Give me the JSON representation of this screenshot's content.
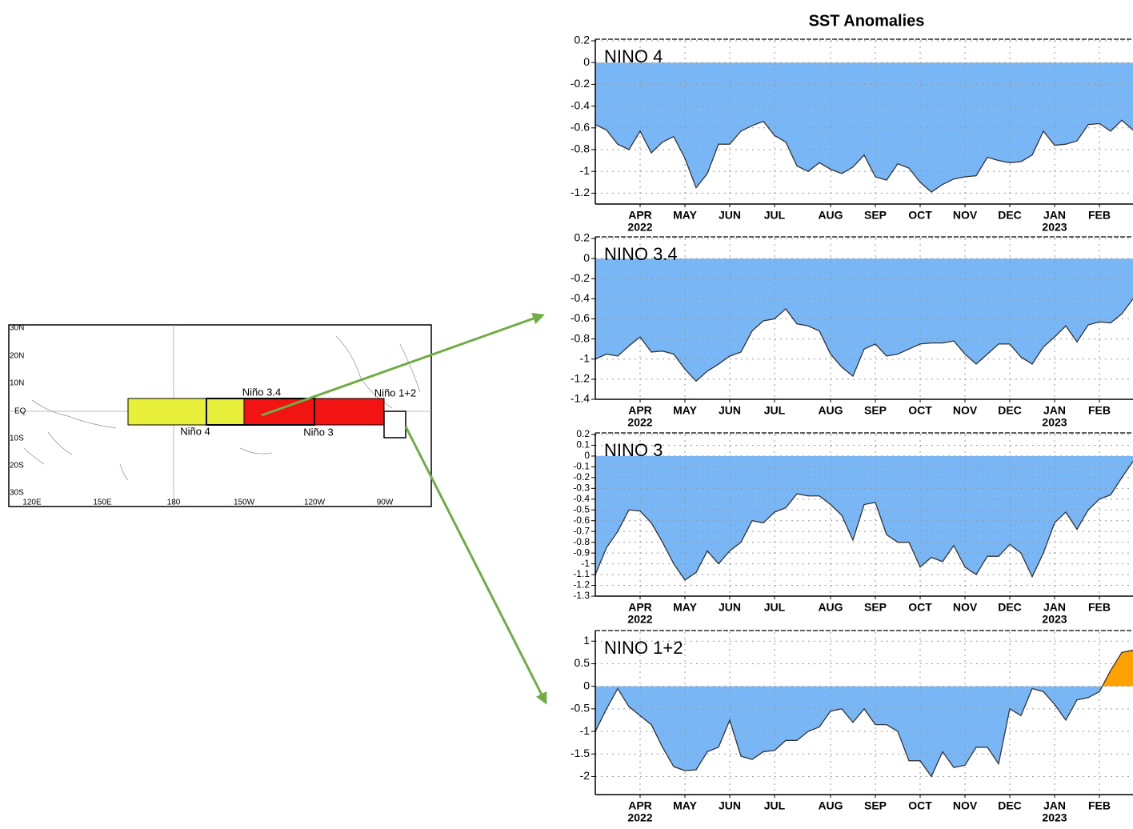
{
  "title": "SST Anomalies",
  "map": {
    "lat_labels": [
      "30N",
      "20N",
      "10N",
      "EQ",
      "10S",
      "20S",
      "30S"
    ],
    "lon_labels": [
      "120E",
      "150E",
      "180",
      "150W",
      "120W",
      "90W"
    ],
    "regions": [
      "Niño 3.4",
      "Niño 1+2",
      "Niño 4",
      "Niño 3"
    ]
  },
  "chart_data": [
    {
      "type": "area",
      "title": "NINO 4",
      "categories": [
        null,
        null,
        null,
        null,
        "APR",
        null,
        null,
        null,
        "MAY",
        null,
        null,
        null,
        "JUN",
        null,
        null,
        null,
        "JUL",
        null,
        null,
        null,
        null,
        "AUG",
        null,
        null,
        null,
        "SEP",
        null,
        null,
        null,
        "OCT",
        null,
        null,
        null,
        "NOV",
        null,
        null,
        null,
        "DEC",
        null,
        null,
        null,
        "JAN",
        null,
        null,
        null,
        "FEB",
        null,
        null,
        null
      ],
      "category_years": [
        null,
        null,
        null,
        null,
        "2022",
        null,
        null,
        null,
        null,
        null,
        null,
        null,
        null,
        null,
        null,
        null,
        null,
        null,
        null,
        null,
        null,
        null,
        null,
        null,
        null,
        null,
        null,
        null,
        null,
        null,
        null,
        null,
        null,
        null,
        null,
        null,
        null,
        null,
        null,
        null,
        null,
        "2023",
        null,
        null,
        null,
        null,
        null,
        null,
        null
      ],
      "values": [
        -0.57,
        -0.62,
        -0.75,
        -0.8,
        -0.63,
        -0.83,
        -0.73,
        -0.68,
        -0.88,
        -1.15,
        -1.02,
        -0.75,
        -0.75,
        -0.63,
        -0.58,
        -0.54,
        -0.67,
        -0.73,
        -0.95,
        -1.0,
        -0.92,
        -0.98,
        -1.02,
        -0.96,
        -0.85,
        -1.05,
        -1.08,
        -0.93,
        -0.97,
        -1.1,
        -1.19,
        -1.12,
        -1.07,
        -1.05,
        -1.04,
        -0.87,
        -0.9,
        -0.92,
        -0.91,
        -0.85,
        -0.63,
        -0.76,
        -0.75,
        -0.72,
        -0.57,
        -0.56,
        -0.63,
        -0.53,
        -0.62
      ],
      "color": "#78b6f6",
      "positive_color": "#ffa200",
      "line_color": "#333333",
      "ylim": [
        -1.3,
        0.2
      ],
      "yticks": [
        0.2,
        0,
        -0.2,
        -0.4,
        -0.6,
        -0.8,
        -1,
        -1.2
      ],
      "grid": true
    },
    {
      "type": "area",
      "title": "NINO 3.4",
      "categories": [
        null,
        null,
        null,
        null,
        "APR",
        null,
        null,
        null,
        "MAY",
        null,
        null,
        null,
        "JUN",
        null,
        null,
        null,
        "JUL",
        null,
        null,
        null,
        null,
        "AUG",
        null,
        null,
        null,
        "SEP",
        null,
        null,
        null,
        "OCT",
        null,
        null,
        null,
        "NOV",
        null,
        null,
        null,
        "DEC",
        null,
        null,
        null,
        "JAN",
        null,
        null,
        null,
        "FEB",
        null,
        null,
        null
      ],
      "category_years": [
        null,
        null,
        null,
        null,
        "2022",
        null,
        null,
        null,
        null,
        null,
        null,
        null,
        null,
        null,
        null,
        null,
        null,
        null,
        null,
        null,
        null,
        null,
        null,
        null,
        null,
        null,
        null,
        null,
        null,
        null,
        null,
        null,
        null,
        null,
        null,
        null,
        null,
        null,
        null,
        null,
        null,
        "2023",
        null,
        null,
        null,
        null,
        null,
        null,
        null
      ],
      "values": [
        -1.0,
        -0.95,
        -0.97,
        -0.87,
        -0.78,
        -0.93,
        -0.92,
        -0.95,
        -1.1,
        -1.22,
        -1.12,
        -1.05,
        -0.97,
        -0.93,
        -0.72,
        -0.62,
        -0.6,
        -0.5,
        -0.65,
        -0.67,
        -0.72,
        -0.95,
        -1.08,
        -1.17,
        -0.9,
        -0.85,
        -0.97,
        -0.95,
        -0.9,
        -0.85,
        -0.84,
        -0.84,
        -0.82,
        -0.95,
        -1.05,
        -0.95,
        -0.85,
        -0.85,
        -0.98,
        -1.05,
        -0.88,
        -0.78,
        -0.67,
        -0.83,
        -0.66,
        -0.63,
        -0.64,
        -0.55,
        -0.4
      ],
      "color": "#78b6f6",
      "positive_color": "#ffa200",
      "line_color": "#333333",
      "ylim": [
        -1.4,
        0.2
      ],
      "yticks": [
        0.2,
        0,
        -0.2,
        -0.4,
        -0.6,
        -0.8,
        -1,
        -1.2,
        -1.4
      ],
      "grid": true
    },
    {
      "type": "area",
      "title": "NINO 3",
      "categories": [
        null,
        null,
        null,
        null,
        "APR",
        null,
        null,
        null,
        "MAY",
        null,
        null,
        null,
        "JUN",
        null,
        null,
        null,
        "JUL",
        null,
        null,
        null,
        null,
        "AUG",
        null,
        null,
        null,
        "SEP",
        null,
        null,
        null,
        "OCT",
        null,
        null,
        null,
        "NOV",
        null,
        null,
        null,
        "DEC",
        null,
        null,
        null,
        "JAN",
        null,
        null,
        null,
        "FEB",
        null,
        null,
        null
      ],
      "category_years": [
        null,
        null,
        null,
        null,
        "2022",
        null,
        null,
        null,
        null,
        null,
        null,
        null,
        null,
        null,
        null,
        null,
        null,
        null,
        null,
        null,
        null,
        null,
        null,
        null,
        null,
        null,
        null,
        null,
        null,
        null,
        null,
        null,
        null,
        null,
        null,
        null,
        null,
        null,
        null,
        null,
        null,
        "2023",
        null,
        null,
        null,
        null,
        null,
        null,
        null
      ],
      "values": [
        -1.1,
        -0.85,
        -0.7,
        -0.5,
        -0.51,
        -0.62,
        -0.8,
        -1.0,
        -1.15,
        -1.08,
        -0.88,
        -1.0,
        -0.88,
        -0.8,
        -0.6,
        -0.62,
        -0.52,
        -0.48,
        -0.35,
        -0.37,
        -0.37,
        -0.45,
        -0.55,
        -0.78,
        -0.45,
        -0.43,
        -0.73,
        -0.8,
        -0.8,
        -1.03,
        -0.94,
        -0.98,
        -0.83,
        -1.03,
        -1.1,
        -0.93,
        -0.93,
        -0.82,
        -0.9,
        -1.12,
        -0.9,
        -0.62,
        -0.52,
        -0.68,
        -0.5,
        -0.4,
        -0.36,
        -0.2,
        -0.05
      ],
      "color": "#78b6f6",
      "positive_color": "#ffa200",
      "line_color": "#333333",
      "ylim": [
        -1.3,
        0.2
      ],
      "yticks": [
        0.2,
        0.1,
        0,
        -0.1,
        -0.2,
        -0.3,
        -0.4,
        -0.5,
        -0.6,
        -0.7,
        -0.8,
        -0.9,
        -1,
        -1.1,
        -1.2,
        -1.3
      ],
      "grid": true
    },
    {
      "type": "area",
      "title": "NINO 1+2",
      "categories": [
        null,
        null,
        null,
        null,
        "APR",
        null,
        null,
        null,
        "MAY",
        null,
        null,
        null,
        "JUN",
        null,
        null,
        null,
        "JUL",
        null,
        null,
        null,
        null,
        "AUG",
        null,
        null,
        null,
        "SEP",
        null,
        null,
        null,
        "OCT",
        null,
        null,
        null,
        "NOV",
        null,
        null,
        null,
        "DEC",
        null,
        null,
        null,
        "JAN",
        null,
        null,
        null,
        "FEB",
        null,
        null,
        null
      ],
      "category_years": [
        null,
        null,
        null,
        null,
        "2022",
        null,
        null,
        null,
        null,
        null,
        null,
        null,
        null,
        null,
        null,
        null,
        null,
        null,
        null,
        null,
        null,
        null,
        null,
        null,
        null,
        null,
        null,
        null,
        null,
        null,
        null,
        null,
        null,
        null,
        null,
        null,
        null,
        null,
        null,
        null,
        null,
        "2023",
        null,
        null,
        null,
        null,
        null,
        null,
        null
      ],
      "values": [
        -1.0,
        -0.5,
        -0.05,
        -0.45,
        -0.65,
        -0.85,
        -1.35,
        -1.78,
        -1.87,
        -1.85,
        -1.45,
        -1.35,
        -0.75,
        -1.55,
        -1.62,
        -1.45,
        -1.42,
        -1.2,
        -1.2,
        -1.0,
        -0.9,
        -0.55,
        -0.5,
        -0.8,
        -0.5,
        -0.85,
        -0.85,
        -1.0,
        -1.65,
        -1.65,
        -2.0,
        -1.45,
        -1.8,
        -1.75,
        -1.35,
        -1.35,
        -1.72,
        -0.5,
        -0.65,
        -0.05,
        -0.12,
        -0.4,
        -0.75,
        -0.3,
        -0.25,
        -0.12,
        0.35,
        0.75,
        0.8
      ],
      "color": "#78b6f6",
      "positive_color": "#ffa200",
      "line_color": "#333333",
      "ylim": [
        -2.4,
        1.2
      ],
      "yticks": [
        1,
        0.5,
        0,
        -0.5,
        -1,
        -1.5,
        -2
      ],
      "grid": true
    }
  ]
}
